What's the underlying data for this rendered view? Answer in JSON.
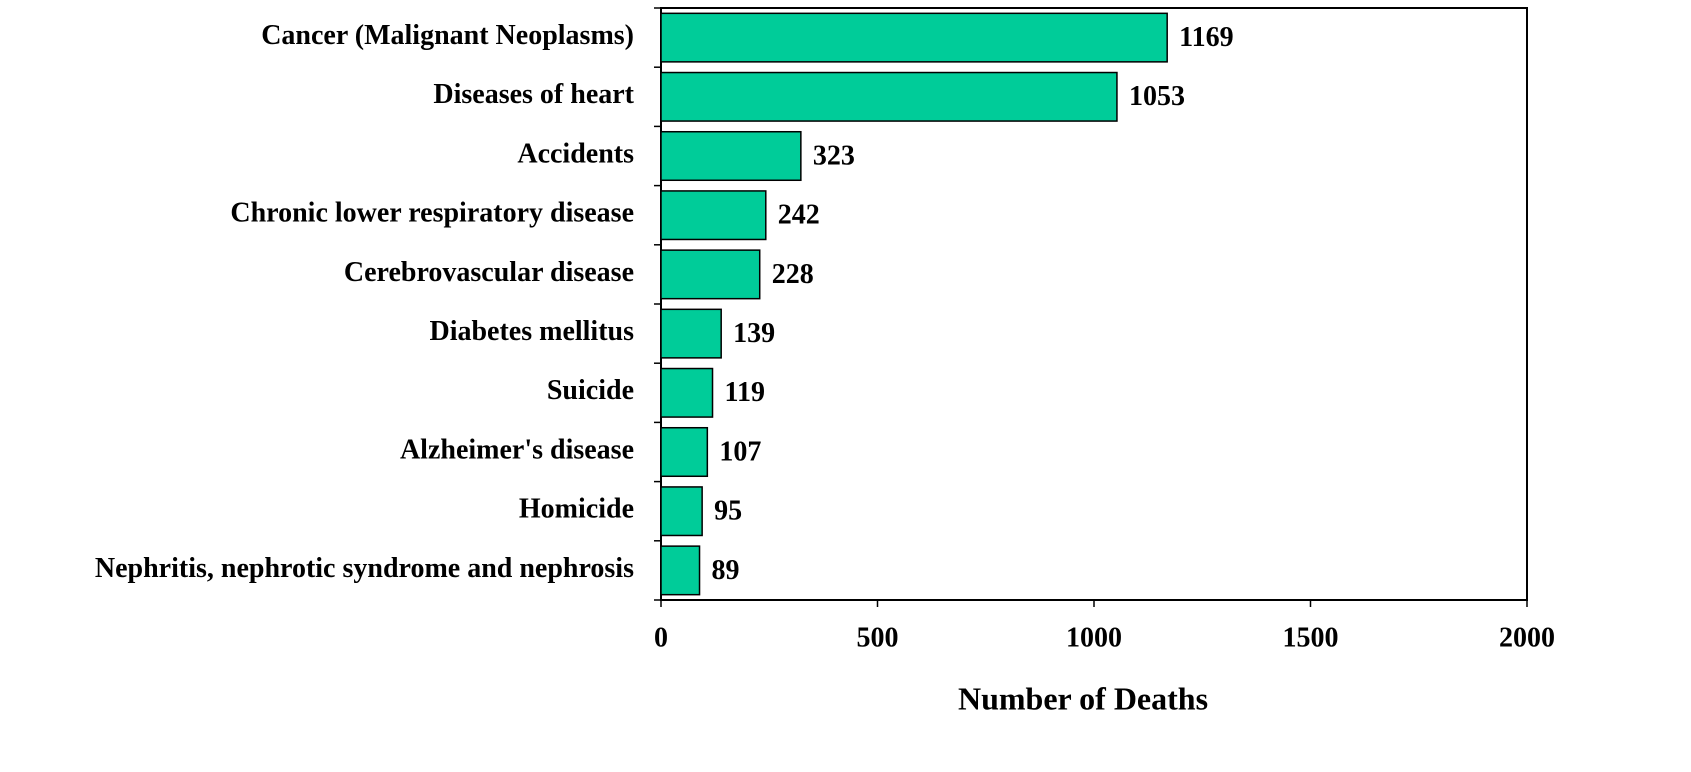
{
  "chart_data": {
    "type": "bar",
    "orientation": "horizontal",
    "x_label": "Number of Deaths",
    "categories": [
      "Cancer (Malignant Neoplasms)",
      "Diseases of heart",
      "Accidents",
      "Chronic lower respiratory disease",
      "Cerebrovascular disease",
      "Diabetes mellitus",
      "Suicide",
      "Alzheimer's disease",
      "Homicide",
      "Nephritis, nephrotic syndrome and nephrosis"
    ],
    "values": [
      1169,
      1053,
      323,
      242,
      228,
      139,
      119,
      107,
      95,
      89
    ],
    "color": "#00cc99",
    "xlim": [
      0,
      2000
    ],
    "xticks": [
      0,
      500,
      1000,
      1500,
      2000
    ],
    "grid": false
  }
}
